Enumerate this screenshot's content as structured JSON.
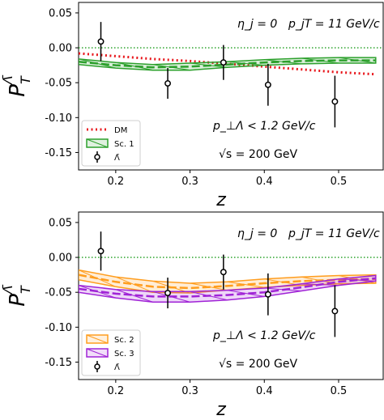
{
  "chart_data": [
    {
      "type": "line",
      "panel": "top",
      "ylabel": "P_T^{Λ̄}",
      "xlabel": "z",
      "xlim": [
        0.15,
        0.56
      ],
      "ylim": [
        -0.175,
        0.065
      ],
      "xticks": [
        "0.2",
        "0.3",
        "0.4",
        "0.5"
      ],
      "yticks": [
        "0.05",
        "0.00",
        "-0.05",
        "-0.10",
        "-0.15"
      ],
      "annotations": {
        "top_left": "η_j = 0",
        "top_right": "p_jT = 11 GeV/c",
        "cut": "p_⊥Λ < 1.2 GeV/c",
        "energy": "√s = 200 GeV"
      },
      "legend": {
        "placement": "lower-left",
        "entries": [
          "DM",
          "Sc. 1",
          "Λ̄"
        ]
      },
      "series": [
        {
          "name": "DM",
          "style": "dotted",
          "color": "#e8161b",
          "x": [
            0.15,
            0.2,
            0.25,
            0.3,
            0.35,
            0.4,
            0.45,
            0.5,
            0.55
          ],
          "y": [
            -0.008,
            -0.012,
            -0.016,
            -0.019,
            -0.023,
            -0.027,
            -0.031,
            -0.035,
            -0.038
          ]
        },
        {
          "name": "Sc. 1",
          "style": "band",
          "color": "#2ca02c",
          "x": [
            0.15,
            0.2,
            0.25,
            0.3,
            0.35,
            0.4,
            0.45,
            0.5,
            0.55
          ],
          "y": [
            -0.02,
            -0.025,
            -0.028,
            -0.027,
            -0.024,
            -0.021,
            -0.019,
            -0.018,
            -0.018
          ],
          "y_low": [
            -0.024,
            -0.029,
            -0.032,
            -0.032,
            -0.028,
            -0.025,
            -0.023,
            -0.022,
            -0.022
          ],
          "y_high": [
            -0.016,
            -0.021,
            -0.024,
            -0.022,
            -0.02,
            -0.017,
            -0.015,
            -0.014,
            -0.014
          ]
        },
        {
          "name": "Λ̄",
          "style": "points",
          "color": "#000000",
          "x": [
            0.18,
            0.27,
            0.345,
            0.405,
            0.495
          ],
          "y": [
            0.009,
            -0.051,
            -0.021,
            -0.053,
            -0.077
          ],
          "err": [
            0.028,
            0.022,
            0.025,
            0.03,
            0.037
          ]
        }
      ]
    },
    {
      "type": "line",
      "panel": "bottom",
      "ylabel": "P_T^{Λ̄}",
      "xlabel": "z",
      "xlim": [
        0.15,
        0.56
      ],
      "ylim": [
        -0.175,
        0.065
      ],
      "xticks": [
        "0.2",
        "0.3",
        "0.4",
        "0.5"
      ],
      "yticks": [
        "0.05",
        "0.00",
        "-0.05",
        "-0.10",
        "-0.15"
      ],
      "annotations": {
        "top_left": "η_j = 0",
        "top_right": "p_jT = 11 GeV/c",
        "cut": "p_⊥Λ < 1.2 GeV/c",
        "energy": "√s = 200 GeV"
      },
      "legend": {
        "placement": "lower-left",
        "entries": [
          "Sc. 2",
          "Sc. 3",
          "Λ̄"
        ]
      },
      "series": [
        {
          "name": "Sc. 2",
          "style": "band",
          "color": "#ff9d1e",
          "x": [
            0.15,
            0.2,
            0.25,
            0.3,
            0.35,
            0.4,
            0.45,
            0.5,
            0.55
          ],
          "y": [
            -0.025,
            -0.035,
            -0.042,
            -0.044,
            -0.041,
            -0.037,
            -0.034,
            -0.032,
            -0.031
          ],
          "y_low": [
            -0.032,
            -0.042,
            -0.05,
            -0.051,
            -0.047,
            -0.043,
            -0.04,
            -0.038,
            -0.037
          ],
          "y_high": [
            -0.018,
            -0.028,
            -0.034,
            -0.037,
            -0.035,
            -0.031,
            -0.028,
            -0.026,
            -0.025
          ]
        },
        {
          "name": "Sc. 3",
          "style": "band",
          "color": "#a023d6",
          "x": [
            0.15,
            0.2,
            0.25,
            0.3,
            0.35,
            0.4,
            0.45,
            0.5,
            0.55
          ],
          "y": [
            -0.045,
            -0.052,
            -0.056,
            -0.056,
            -0.054,
            -0.05,
            -0.043,
            -0.035,
            -0.03
          ],
          "y_low": [
            -0.05,
            -0.058,
            -0.064,
            -0.064,
            -0.061,
            -0.056,
            -0.048,
            -0.04,
            -0.034
          ],
          "y_high": [
            -0.04,
            -0.046,
            -0.049,
            -0.049,
            -0.047,
            -0.044,
            -0.038,
            -0.031,
            -0.026
          ]
        },
        {
          "name": "Λ̄",
          "style": "points",
          "color": "#000000",
          "x": [
            0.18,
            0.27,
            0.345,
            0.405,
            0.495
          ],
          "y": [
            0.009,
            -0.051,
            -0.021,
            -0.053,
            -0.077
          ],
          "err": [
            0.028,
            0.022,
            0.025,
            0.03,
            0.037
          ]
        }
      ]
    }
  ]
}
